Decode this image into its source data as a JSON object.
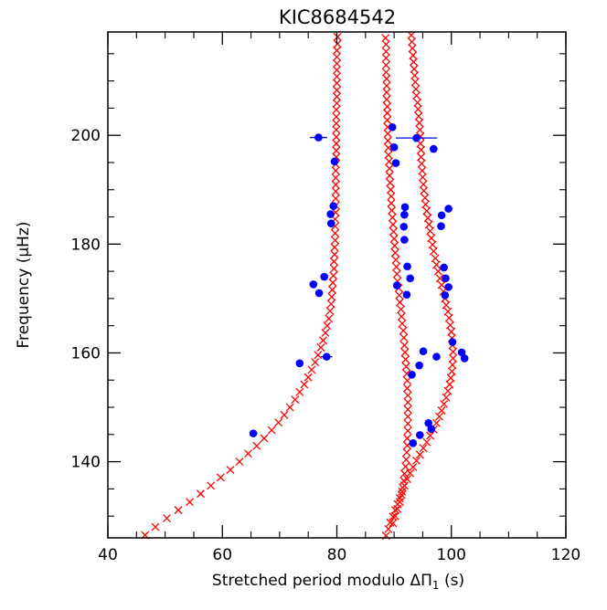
{
  "chart_data": {
    "type": "scatter",
    "title": "KIC8684542",
    "xlabel_main": "Stretched period modulo ΔΠ",
    "xlabel_sub": "1",
    "xlabel_unit": " (s)",
    "ylabel": "Frequency (μHz)",
    "xlim": [
      40,
      120
    ],
    "ylim": [
      126,
      219
    ],
    "xticks": [
      40,
      60,
      80,
      100,
      120
    ],
    "yticks": [
      140,
      160,
      180,
      200
    ],
    "grid": false,
    "colors": {
      "model": "#ff0000",
      "observed": "#0000ff",
      "axis": "#000000"
    },
    "series": [
      {
        "marker": "cross",
        "points": [
          [
            46.5,
            126.5
          ],
          [
            48.3,
            128.0
          ],
          [
            50.3,
            129.6
          ],
          [
            52.3,
            131.1
          ],
          [
            54.3,
            132.6
          ],
          [
            56.2,
            134.1
          ],
          [
            58.0,
            135.6
          ],
          [
            59.7,
            137.1
          ],
          [
            61.4,
            138.5
          ],
          [
            63.0,
            140.0
          ],
          [
            64.5,
            141.5
          ],
          [
            66.0,
            142.9
          ],
          [
            67.3,
            144.3
          ],
          [
            68.6,
            145.8
          ],
          [
            69.8,
            147.2
          ],
          [
            70.8,
            148.6
          ],
          [
            71.8,
            150.0
          ],
          [
            72.7,
            151.4
          ],
          [
            73.5,
            152.8
          ],
          [
            74.3,
            154.2
          ],
          [
            75.0,
            155.5
          ],
          [
            75.6,
            156.9
          ],
          [
            76.2,
            158.3
          ],
          [
            76.7,
            159.6
          ],
          [
            77.2,
            161.0
          ],
          [
            77.6,
            162.3
          ],
          [
            78.0,
            163.7
          ],
          [
            78.3,
            165.0
          ],
          [
            78.6,
            166.3
          ],
          [
            78.8,
            167.7
          ],
          [
            79.0,
            169.0
          ],
          [
            79.1,
            170.3
          ],
          [
            79.2,
            171.6
          ],
          [
            79.3,
            172.9
          ],
          [
            79.4,
            174.2
          ],
          [
            79.5,
            175.5
          ],
          [
            79.5,
            176.8
          ],
          [
            79.6,
            178.1
          ],
          [
            79.6,
            179.4
          ],
          [
            79.7,
            180.7
          ],
          [
            79.7,
            182.0
          ],
          [
            79.7,
            183.3
          ],
          [
            79.7,
            184.6
          ],
          [
            79.8,
            185.8
          ],
          [
            79.8,
            187.1
          ],
          [
            79.8,
            188.4
          ],
          [
            79.8,
            189.7
          ],
          [
            79.8,
            190.9
          ],
          [
            79.8,
            192.2
          ],
          [
            79.8,
            193.5
          ],
          [
            79.8,
            194.7
          ],
          [
            79.9,
            196.0
          ],
          [
            79.9,
            197.2
          ],
          [
            79.9,
            198.5
          ],
          [
            79.9,
            199.7
          ],
          [
            79.9,
            201.0
          ],
          [
            79.9,
            202.2
          ],
          [
            79.9,
            203.4
          ],
          [
            79.9,
            204.7
          ],
          [
            80.0,
            205.9
          ],
          [
            80.0,
            207.1
          ],
          [
            80.0,
            208.3
          ],
          [
            80.0,
            209.6
          ],
          [
            80.0,
            210.8
          ],
          [
            80.0,
            212.0
          ],
          [
            80.0,
            213.2
          ],
          [
            80.0,
            214.4
          ],
          [
            80.0,
            215.6
          ],
          [
            80.1,
            216.8
          ],
          [
            80.1,
            218.1
          ]
        ]
      },
      {
        "marker": "cross",
        "points": [
          [
            88.6,
            126.4
          ],
          [
            89.0,
            127.6
          ],
          [
            89.3,
            128.8
          ],
          [
            89.8,
            129.9
          ],
          [
            90.2,
            131.1
          ],
          [
            90.6,
            132.2
          ],
          [
            91.0,
            133.3
          ],
          [
            91.4,
            134.5
          ],
          [
            91.8,
            135.6
          ],
          [
            92.3,
            136.8
          ],
          [
            92.8,
            137.9
          ],
          [
            93.3,
            139.0
          ],
          [
            93.9,
            140.2
          ],
          [
            94.5,
            141.3
          ],
          [
            95.1,
            142.5
          ],
          [
            95.7,
            143.6
          ],
          [
            96.3,
            144.8
          ],
          [
            96.9,
            145.9
          ],
          [
            97.4,
            147.1
          ],
          [
            97.9,
            148.3
          ],
          [
            98.3,
            149.4
          ],
          [
            98.7,
            150.6
          ],
          [
            99.1,
            151.8
          ],
          [
            99.4,
            153.0
          ],
          [
            99.7,
            154.2
          ],
          [
            99.9,
            155.4
          ],
          [
            100.1,
            156.6
          ],
          [
            100.2,
            157.8
          ],
          [
            100.3,
            159.0
          ],
          [
            100.3,
            160.2
          ],
          [
            100.2,
            161.4
          ],
          [
            100.1,
            162.7
          ],
          [
            100.0,
            163.9
          ],
          [
            99.8,
            165.1
          ],
          [
            99.6,
            166.4
          ],
          [
            99.4,
            167.6
          ],
          [
            99.1,
            168.8
          ],
          [
            98.9,
            170.0
          ],
          [
            98.6,
            171.3
          ],
          [
            98.3,
            172.5
          ],
          [
            98.0,
            173.7
          ],
          [
            97.7,
            175.0
          ],
          [
            97.4,
            176.2
          ],
          [
            97.2,
            177.4
          ],
          [
            96.9,
            178.7
          ],
          [
            96.7,
            179.9
          ],
          [
            96.5,
            181.1
          ],
          [
            96.3,
            182.4
          ],
          [
            96.1,
            183.6
          ],
          [
            95.9,
            184.8
          ],
          [
            95.7,
            186.1
          ],
          [
            95.5,
            187.3
          ],
          [
            95.4,
            188.5
          ],
          [
            95.2,
            189.8
          ],
          [
            95.1,
            191.0
          ],
          [
            95.0,
            192.3
          ],
          [
            94.9,
            193.5
          ],
          [
            94.8,
            194.8
          ],
          [
            94.7,
            196.0
          ],
          [
            94.7,
            197.3
          ],
          [
            94.6,
            198.5
          ],
          [
            94.6,
            199.8
          ],
          [
            94.5,
            201.0
          ],
          [
            94.4,
            202.3
          ],
          [
            94.3,
            203.5
          ],
          [
            94.2,
            204.8
          ],
          [
            94.1,
            206.0
          ],
          [
            93.9,
            207.3
          ],
          [
            93.8,
            208.5
          ],
          [
            93.7,
            209.8
          ],
          [
            93.6,
            211.0
          ],
          [
            93.5,
            212.2
          ],
          [
            93.4,
            213.5
          ],
          [
            93.3,
            214.7
          ],
          [
            93.2,
            216.0
          ],
          [
            93.1,
            217.2
          ],
          [
            93.0,
            218.4
          ]
        ]
      },
      {
        "marker": "cross",
        "points": [
          [
            89.8,
            128.7
          ],
          [
            90.2,
            130.0
          ],
          [
            90.6,
            131.3
          ],
          [
            91.0,
            132.6
          ],
          [
            91.3,
            133.9
          ],
          [
            91.5,
            135.2
          ],
          [
            91.7,
            136.5
          ],
          [
            91.8,
            137.8
          ],
          [
            92.0,
            139.1
          ],
          [
            92.1,
            140.4
          ],
          [
            92.2,
            141.7
          ],
          [
            92.3,
            143.0
          ],
          [
            92.3,
            144.3
          ],
          [
            92.4,
            145.7
          ],
          [
            92.4,
            147.0
          ],
          [
            92.4,
            148.3
          ],
          [
            92.4,
            149.6
          ],
          [
            92.4,
            150.9
          ],
          [
            92.4,
            152.2
          ],
          [
            92.3,
            153.5
          ],
          [
            92.3,
            154.9
          ],
          [
            92.2,
            156.2
          ],
          [
            92.1,
            157.5
          ],
          [
            92.0,
            158.8
          ],
          [
            91.9,
            160.1
          ],
          [
            91.8,
            161.4
          ],
          [
            91.7,
            162.8
          ],
          [
            91.6,
            164.1
          ],
          [
            91.4,
            165.4
          ],
          [
            91.3,
            166.7
          ],
          [
            91.2,
            168.0
          ],
          [
            91.0,
            169.3
          ],
          [
            90.9,
            170.6
          ],
          [
            90.8,
            171.9
          ],
          [
            90.6,
            173.2
          ],
          [
            90.5,
            174.5
          ],
          [
            90.4,
            175.8
          ],
          [
            90.3,
            177.1
          ],
          [
            90.2,
            178.4
          ],
          [
            90.1,
            179.7
          ],
          [
            90.0,
            181.0
          ],
          [
            89.9,
            182.3
          ],
          [
            89.8,
            183.6
          ],
          [
            89.7,
            184.9
          ],
          [
            89.6,
            186.2
          ],
          [
            89.5,
            187.5
          ],
          [
            89.5,
            188.8
          ],
          [
            89.4,
            190.0
          ],
          [
            89.3,
            191.3
          ],
          [
            89.2,
            192.6
          ],
          [
            89.2,
            193.9
          ],
          [
            89.1,
            195.2
          ],
          [
            89.0,
            196.4
          ],
          [
            89.0,
            197.7
          ],
          [
            88.9,
            199.0
          ],
          [
            88.9,
            200.3
          ],
          [
            88.9,
            201.5
          ],
          [
            88.8,
            202.8
          ],
          [
            88.8,
            204.1
          ],
          [
            88.8,
            205.3
          ],
          [
            88.7,
            206.6
          ],
          [
            88.7,
            207.9
          ],
          [
            88.7,
            209.1
          ],
          [
            88.7,
            210.4
          ],
          [
            88.6,
            211.6
          ],
          [
            88.6,
            212.9
          ],
          [
            88.6,
            214.2
          ],
          [
            88.6,
            215.4
          ],
          [
            88.6,
            216.7
          ],
          [
            88.5,
            217.9
          ]
        ]
      },
      {
        "marker": "dot",
        "points": [
          {
            "x": 76.8,
            "y": 199.6,
            "xerr": 1.5
          },
          {
            "x": 79.6,
            "y": 195.2
          },
          {
            "x": 79.4,
            "y": 187.0
          },
          {
            "x": 78.9,
            "y": 185.5
          },
          {
            "x": 79.0,
            "y": 183.8
          },
          {
            "x": 77.8,
            "y": 174.0
          },
          {
            "x": 75.9,
            "y": 172.6
          },
          {
            "x": 76.9,
            "y": 171.0
          },
          {
            "x": 78.2,
            "y": 159.3,
            "xerr": 1.0
          },
          {
            "x": 73.5,
            "y": 158.1
          },
          {
            "x": 65.4,
            "y": 145.2
          },
          {
            "x": 89.7,
            "y": 201.5
          },
          {
            "x": 90.0,
            "y": 197.8
          },
          {
            "x": 90.3,
            "y": 194.9
          },
          {
            "x": 91.9,
            "y": 186.8
          },
          {
            "x": 91.8,
            "y": 185.4
          },
          {
            "x": 91.7,
            "y": 183.2
          },
          {
            "x": 91.8,
            "y": 180.8
          },
          {
            "x": 92.3,
            "y": 175.9
          },
          {
            "x": 92.8,
            "y": 173.7
          },
          {
            "x": 90.5,
            "y": 172.4
          },
          {
            "x": 92.2,
            "y": 170.7
          },
          {
            "x": 95.1,
            "y": 160.3
          },
          {
            "x": 93.1,
            "y": 156.0
          },
          {
            "x": 94.4,
            "y": 157.7
          },
          {
            "x": 93.3,
            "y": 143.4
          },
          {
            "x": 94.5,
            "y": 144.9
          },
          {
            "x": 96.0,
            "y": 147.1
          },
          {
            "x": 96.5,
            "y": 146.0
          },
          {
            "x": 93.9,
            "y": 199.5,
            "xerr": 3.6
          },
          {
            "x": 96.9,
            "y": 197.5
          },
          {
            "x": 98.3,
            "y": 185.3
          },
          {
            "x": 99.5,
            "y": 186.5
          },
          {
            "x": 98.2,
            "y": 183.3
          },
          {
            "x": 98.7,
            "y": 175.7
          },
          {
            "x": 99.0,
            "y": 173.7
          },
          {
            "x": 99.5,
            "y": 172.1
          },
          {
            "x": 98.9,
            "y": 170.6
          },
          {
            "x": 100.2,
            "y": 162.0
          },
          {
            "x": 97.4,
            "y": 159.3
          },
          {
            "x": 101.8,
            "y": 160.1
          },
          {
            "x": 102.3,
            "y": 159.0
          }
        ]
      }
    ]
  }
}
